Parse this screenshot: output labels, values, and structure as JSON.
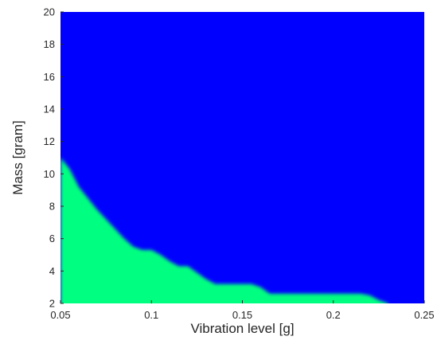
{
  "chart_data": {
    "type": "heatmap",
    "title": "",
    "xlabel": "Vibration level [g]",
    "ylabel": "Mass [gram]",
    "xlim": [
      0.05,
      0.25
    ],
    "ylim": [
      2,
      20
    ],
    "x_ticks": [
      0.05,
      0.1,
      0.15,
      0.2,
      0.25
    ],
    "x_tick_labels": [
      "0.05",
      "0.1",
      "0.15",
      "0.2",
      "0.25"
    ],
    "y_ticks": [
      2,
      4,
      6,
      8,
      10,
      12,
      14,
      16,
      18,
      20
    ],
    "y_tick_labels": [
      "2",
      "4",
      "6",
      "8",
      "10",
      "12",
      "14",
      "16",
      "18",
      "20"
    ],
    "grid": false,
    "colors": {
      "region_above": "#0000ff",
      "region_below": "#00ff80"
    },
    "boundary": {
      "x": [
        0.05,
        0.055,
        0.06,
        0.065,
        0.07,
        0.075,
        0.08,
        0.085,
        0.09,
        0.095,
        0.1,
        0.105,
        0.11,
        0.115,
        0.12,
        0.125,
        0.13,
        0.135,
        0.14,
        0.145,
        0.15,
        0.155,
        0.16,
        0.165,
        0.17,
        0.175,
        0.18,
        0.185,
        0.19,
        0.195,
        0.2,
        0.205,
        0.21,
        0.215,
        0.22,
        0.225,
        0.23
      ],
      "y": [
        11.0,
        10.3,
        9.2,
        8.5,
        7.8,
        7.2,
        6.6,
        6.0,
        5.5,
        5.3,
        5.3,
        5.0,
        4.6,
        4.3,
        4.3,
        3.9,
        3.5,
        3.2,
        3.2,
        3.2,
        3.2,
        3.2,
        3.0,
        2.6,
        2.6,
        2.6,
        2.6,
        2.6,
        2.6,
        2.6,
        2.6,
        2.6,
        2.6,
        2.6,
        2.5,
        2.2,
        2.0
      ]
    }
  }
}
